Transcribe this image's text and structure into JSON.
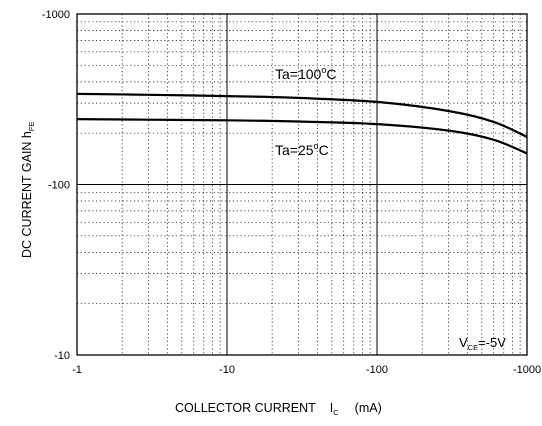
{
  "chart_data": {
    "type": "line",
    "xlabel": "COLLECTOR CURRENT",
    "xlabel_symbol": "I",
    "xlabel_subscript": "C",
    "xlabel_unit": "(mA)",
    "ylabel": "DC CURRENT GAIN h",
    "ylabel_subscript": "FE",
    "x_scale": "log",
    "y_scale": "log",
    "x_ticks": [
      {
        "value": -1,
        "label": "-1"
      },
      {
        "value": -10,
        "label": "-10"
      },
      {
        "value": -100,
        "label": "-100"
      },
      {
        "value": -1000,
        "label": "-1000"
      }
    ],
    "y_ticks": [
      {
        "value": -10,
        "label": "-10"
      },
      {
        "value": -100,
        "label": "-100"
      },
      {
        "value": -1000,
        "label": "-1000"
      }
    ],
    "xlim": [
      -1,
      -1000
    ],
    "ylim": [
      -10,
      -1000
    ],
    "grid": true,
    "series": [
      {
        "name": "Ta=100°C",
        "label_main": "Ta=100",
        "label_unit": "C",
        "x": [
          -1,
          -3,
          -10,
          -30,
          -100,
          -300,
          -600,
          -1000
        ],
        "y": [
          -340,
          -336,
          -330,
          -322,
          -305,
          -270,
          -233,
          -190
        ]
      },
      {
        "name": "Ta=25°C",
        "label_main": "Ta=25",
        "label_unit": "C",
        "x": [
          -1,
          -3,
          -10,
          -30,
          -100,
          -300,
          -600,
          -1000
        ],
        "y": [
          -242,
          -240,
          -238,
          -234,
          -226,
          -207,
          -183,
          -152
        ]
      }
    ],
    "annotation": {
      "symbol": "V",
      "subscript": "CE",
      "value": "=-5V"
    }
  }
}
